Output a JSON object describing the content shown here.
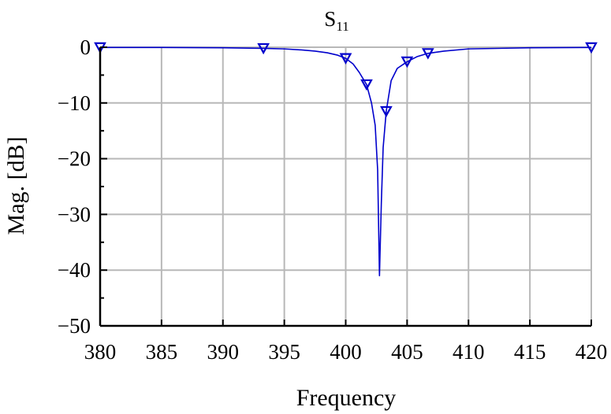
{
  "chart_data": {
    "type": "line",
    "title": "S",
    "title_subscript": "11",
    "xlabel": "Frequency",
    "ylabel": "Mag. [dB]",
    "xlim": [
      380,
      420
    ],
    "ylim": [
      -50,
      0
    ],
    "x_ticks": [
      380,
      385,
      390,
      395,
      400,
      405,
      410,
      415,
      420
    ],
    "x_tick_labels": [
      "380",
      "385",
      "390",
      "395",
      "400",
      "405",
      "410",
      "415",
      "420"
    ],
    "y_ticks": [
      0,
      -10,
      -20,
      -30,
      -40,
      -50
    ],
    "y_tick_labels": [
      "0",
      "−10",
      "−20",
      "−30",
      "−40",
      "−50"
    ],
    "grid": true,
    "line_color": "#0000CC",
    "series": [
      {
        "x": [
          380,
          385,
          390,
          393.3,
          395,
          396.5,
          397.5,
          398.5,
          399.3,
          400,
          400.6,
          401.1,
          401.7,
          402.1,
          402.4,
          402.6,
          402.75,
          402.9,
          403.05,
          403.3,
          403.7,
          404.2,
          405,
          405.8,
          406.7,
          408,
          410,
          415,
          420
        ],
        "y": [
          -0.05,
          -0.05,
          -0.1,
          -0.2,
          -0.3,
          -0.5,
          -0.7,
          -1.0,
          -1.4,
          -2.0,
          -3.0,
          -4.5,
          -6.7,
          -10.0,
          -14.0,
          -22.0,
          -41.0,
          -28.0,
          -18.0,
          -11.5,
          -6.0,
          -3.8,
          -2.6,
          -1.7,
          -1.1,
          -0.7,
          -0.3,
          -0.1,
          -0.05
        ]
      }
    ],
    "markers": {
      "shape": "down-triangle",
      "x": [
        380,
        393.3,
        400,
        401.7,
        403.3,
        405,
        406.7,
        420
      ],
      "y": [
        -0.05,
        -0.2,
        -2.0,
        -6.7,
        -11.5,
        -2.6,
        -1.1,
        -0.05
      ]
    }
  }
}
